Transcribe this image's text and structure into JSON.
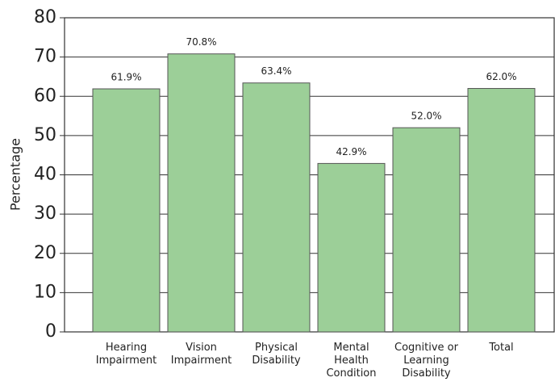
{
  "chart_data": {
    "type": "bar",
    "y_label": "Percentage",
    "categories": [
      "Hearing\nImpairment",
      "Vision\nImpairment",
      "Physical\nDisability",
      "Mental\nHealth\nCondition",
      "Cognitive or\nLearning\nDisability",
      "Total"
    ],
    "values": [
      61.9,
      70.8,
      63.4,
      42.9,
      52.0,
      62.0
    ],
    "value_labels": [
      "61.9%",
      "70.8%",
      "63.4%",
      "42.9%",
      "52.0%",
      "62.0%"
    ],
    "color": "#9ccf98",
    "ylim": [
      0,
      80
    ],
    "yticks": [
      0,
      10,
      20,
      30,
      40,
      50,
      60,
      70,
      80
    ],
    "grid": true
  }
}
